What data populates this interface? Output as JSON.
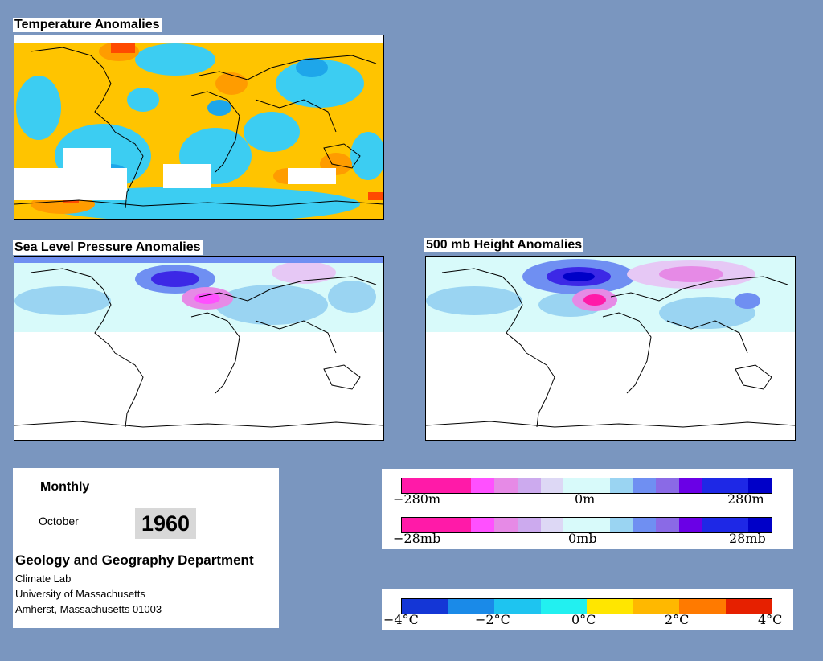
{
  "maps": {
    "temperature": {
      "title": "Temperature Anomalies"
    },
    "slp": {
      "title": "Sea Level Pressure Anomalies"
    },
    "height500": {
      "title": "500 mb Height Anomalies"
    }
  },
  "info": {
    "period": "Monthly",
    "month": "October",
    "year": "1960",
    "department": "Geology and Geography Department",
    "lines": [
      "Climate Lab",
      "University of Massachusetts",
      "Amherst, Massachusetts 01003"
    ]
  },
  "legend_height": {
    "labels": [
      "−280m",
      "0m",
      "280m"
    ],
    "colors": [
      "#ff1aa8",
      "#ff1aa8",
      "#ff1aa8",
      "#ff50ff",
      "#e68ae6",
      "#ccaaee",
      "#ddd8f5",
      "#d8fafa",
      "#d8fafa",
      "#9ad4f2",
      "#6f8ff2",
      "#8a6ae6",
      "#6a00e6",
      "#1e28e6",
      "#1e28e6",
      "#0000c8"
    ]
  },
  "legend_pressure": {
    "labels": [
      "−28mb",
      "0mb",
      "28mb"
    ],
    "colors": [
      "#ff1aa8",
      "#ff1aa8",
      "#ff1aa8",
      "#ff50ff",
      "#e68ae6",
      "#ccaaee",
      "#ddd8f5",
      "#d8fafa",
      "#d8fafa",
      "#9ad4f2",
      "#6f8ff2",
      "#8a6ae6",
      "#6a00e6",
      "#1e28e6",
      "#1e28e6",
      "#0000c8"
    ]
  },
  "legend_temperature": {
    "labels": [
      "−4°C",
      "−2°C",
      "0°C",
      "2°C",
      "4°C"
    ],
    "colors": [
      "#1436d6",
      "#1a8ae8",
      "#1ec4f0",
      "#22f0f0",
      "#ffe600",
      "#ffb800",
      "#ff7a00",
      "#e62000"
    ]
  },
  "colors": {
    "background": "#7a96bf",
    "temp_cold": "#1ec4f0",
    "temp_warm": "#ffc400",
    "anomaly_low": "#ff50ff",
    "anomaly_high": "#3c28e6",
    "anomaly_neutral": "#d8fafa"
  }
}
